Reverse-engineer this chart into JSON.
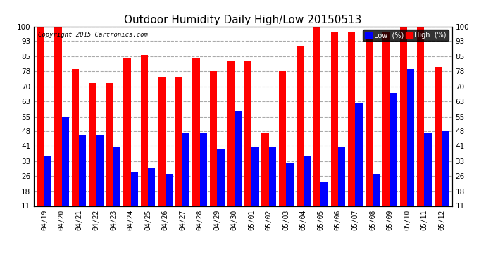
{
  "title": "Outdoor Humidity Daily High/Low 20150513",
  "copyright": "Copyright 2015 Cartronics.com",
  "dates": [
    "04/19",
    "04/20",
    "04/21",
    "04/22",
    "04/23",
    "04/24",
    "04/25",
    "04/26",
    "04/27",
    "04/28",
    "04/29",
    "04/30",
    "05/01",
    "05/02",
    "05/03",
    "05/04",
    "05/05",
    "05/06",
    "05/07",
    "05/08",
    "05/09",
    "05/10",
    "05/11",
    "05/12"
  ],
  "high": [
    100,
    100,
    79,
    72,
    72,
    84,
    86,
    75,
    75,
    84,
    78,
    83,
    83,
    47,
    78,
    90,
    100,
    97,
    97,
    97,
    97,
    100,
    100,
    80
  ],
  "low": [
    36,
    55,
    46,
    46,
    40,
    28,
    30,
    27,
    47,
    47,
    39,
    58,
    40,
    40,
    32,
    36,
    23,
    40,
    62,
    27,
    67,
    79,
    47,
    48
  ],
  "ylim": [
    11,
    100
  ],
  "yticks": [
    11,
    18,
    26,
    33,
    41,
    48,
    55,
    63,
    70,
    78,
    85,
    93,
    100
  ],
  "high_color": "#ff0000",
  "low_color": "#0000ff",
  "bg_color": "#ffffff",
  "grid_color": "#aaaaaa",
  "bar_width": 0.42,
  "legend_low_label": "Low  (%)",
  "legend_high_label": "High  (%)",
  "figsize": [
    6.9,
    3.75
  ],
  "dpi": 100
}
